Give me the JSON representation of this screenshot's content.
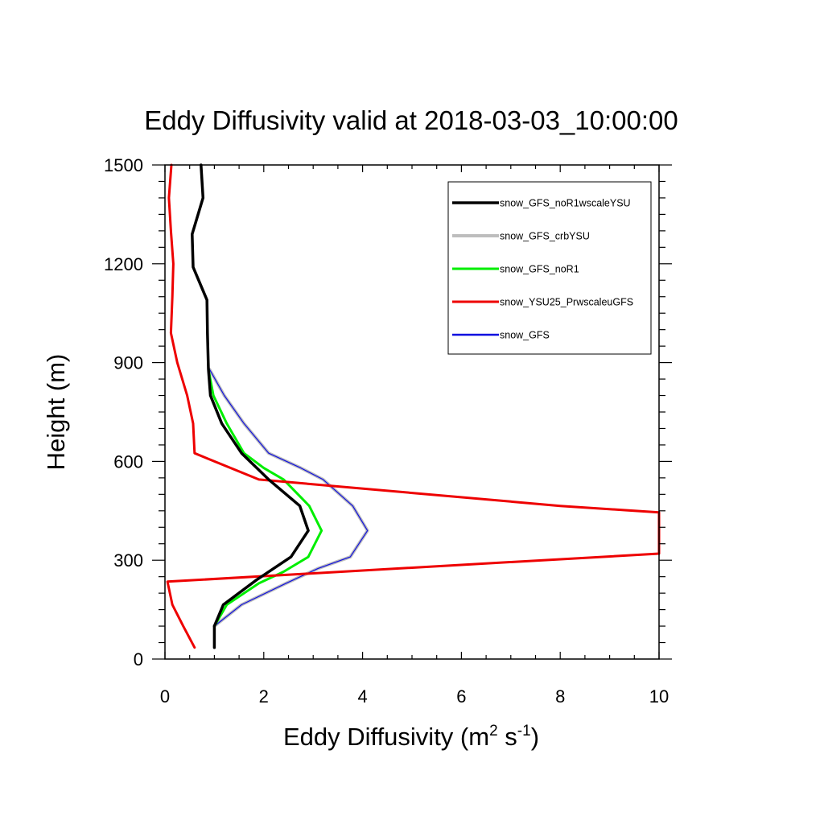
{
  "chart_data": {
    "type": "line",
    "title": "Eddy Diffusivity valid at 2018-03-03_10:00:00",
    "xlabel": "Eddy Diffusivity (m",
    "xlabel_sup1": "2",
    "xlabel_mid": " s",
    "xlabel_sup2": "-1",
    "xlabel_end": ")",
    "ylabel": "Height (m)",
    "xlim": [
      0,
      10
    ],
    "ylim": [
      0,
      1500
    ],
    "x_ticks": [
      0,
      2,
      4,
      6,
      8,
      10
    ],
    "y_ticks": [
      0,
      300,
      600,
      900,
      1200,
      1500
    ],
    "x_tick_labels": [
      "0",
      "2",
      "4",
      "6",
      "8",
      "10"
    ],
    "y_tick_labels": [
      "0",
      "300",
      "600",
      "900",
      "1200",
      "1500"
    ],
    "grid": false,
    "legend_position": "top-right",
    "series": [
      {
        "name": "snow_GFS_crbYSU",
        "color": "#bdbdbd",
        "width": 4,
        "points": [
          [
            1.0,
            100
          ],
          [
            1.55,
            165
          ],
          [
            2.45,
            230
          ],
          [
            3.1,
            275
          ],
          [
            3.75,
            310
          ],
          [
            4.1,
            390
          ],
          [
            3.8,
            465
          ],
          [
            3.2,
            545
          ],
          [
            2.75,
            580
          ],
          [
            2.1,
            625
          ],
          [
            1.6,
            715
          ],
          [
            1.2,
            800
          ],
          [
            0.9,
            880
          ]
        ]
      },
      {
        "name": "snow_GFS",
        "color": "#1010e0",
        "width": 1.2,
        "points": [
          [
            1.0,
            100
          ],
          [
            1.55,
            165
          ],
          [
            2.45,
            230
          ],
          [
            3.1,
            275
          ],
          [
            3.75,
            310
          ],
          [
            4.1,
            390
          ],
          [
            3.8,
            465
          ],
          [
            3.2,
            545
          ],
          [
            2.75,
            580
          ],
          [
            2.1,
            625
          ],
          [
            1.6,
            715
          ],
          [
            1.2,
            800
          ],
          [
            0.9,
            880
          ]
        ]
      },
      {
        "name": "snow_GFS_noR1",
        "color": "#00ee00",
        "width": 3,
        "points": [
          [
            1.0,
            100
          ],
          [
            1.25,
            165
          ],
          [
            1.9,
            230
          ],
          [
            2.4,
            265
          ],
          [
            2.9,
            310
          ],
          [
            3.17,
            390
          ],
          [
            2.92,
            465
          ],
          [
            2.4,
            545
          ],
          [
            2.0,
            580
          ],
          [
            1.6,
            625
          ],
          [
            1.25,
            715
          ],
          [
            0.98,
            800
          ],
          [
            0.88,
            880
          ]
        ]
      },
      {
        "name": "snow_YSU25_PrwscaleuGFS",
        "color": "#ee0000",
        "width": 3,
        "points": [
          [
            0.6,
            35
          ],
          [
            0.37,
            100
          ],
          [
            0.15,
            165
          ],
          [
            0.05,
            235
          ],
          [
            10.0,
            320
          ],
          [
            10.0,
            445
          ],
          [
            8.0,
            465
          ],
          [
            1.9,
            545
          ],
          [
            0.6,
            625
          ],
          [
            0.57,
            715
          ],
          [
            0.45,
            800
          ],
          [
            0.25,
            900
          ],
          [
            0.12,
            990
          ],
          [
            0.15,
            1100
          ],
          [
            0.17,
            1200
          ],
          [
            0.12,
            1300
          ],
          [
            0.08,
            1400
          ],
          [
            0.13,
            1500
          ]
        ]
      },
      {
        "name": "snow_GFS_noR1wscaleYSU",
        "color": "#000000",
        "width": 3.5,
        "points": [
          [
            1.0,
            35
          ],
          [
            1.0,
            100
          ],
          [
            1.18,
            165
          ],
          [
            1.85,
            240
          ],
          [
            2.55,
            310
          ],
          [
            2.9,
            390
          ],
          [
            2.73,
            465
          ],
          [
            2.1,
            545
          ],
          [
            1.55,
            625
          ],
          [
            1.15,
            715
          ],
          [
            0.92,
            800
          ],
          [
            0.88,
            880
          ],
          [
            0.86,
            990
          ],
          [
            0.85,
            1090
          ],
          [
            0.57,
            1190
          ],
          [
            0.55,
            1290
          ],
          [
            0.77,
            1400
          ],
          [
            0.73,
            1500
          ]
        ]
      }
    ],
    "legend_order": [
      "snow_GFS_noR1wscaleYSU",
      "snow_GFS_crbYSU",
      "snow_GFS_noR1",
      "snow_YSU25_PrwscaleuGFS",
      "snow_GFS"
    ]
  }
}
